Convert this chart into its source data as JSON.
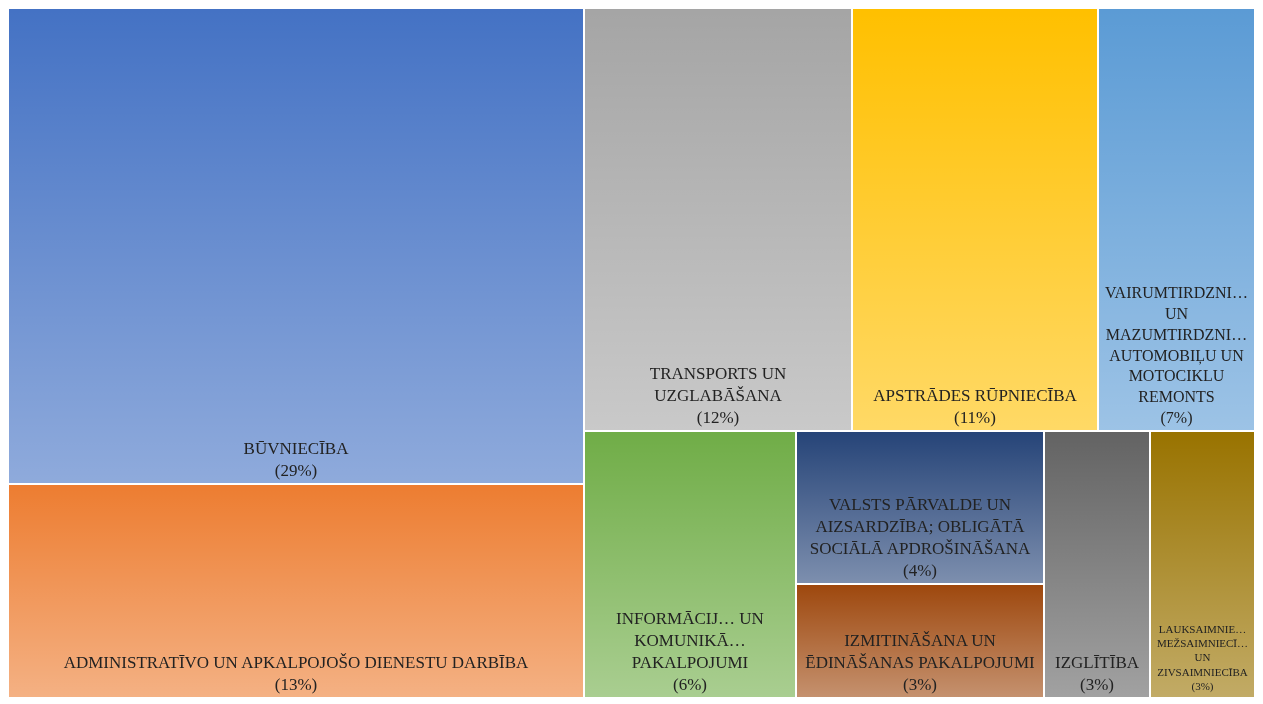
{
  "chart_data": {
    "type": "other",
    "categories": [
      "BŪVNIECĪBA",
      "ADMINISTRATĪVO UN APKALPOJOŠO DIENESTU DARBĪBA",
      "TRANSPORTS UN UZGLABĀŠANA",
      "APSTRĀDES RŪPNIECĪBA",
      "VAIRUMTIRDZNI… UN MAZUMTIRDZNI… AUTOMOBIĻU UN MOTOCIKLU REMONTS",
      "INFORMĀCIJ… UN KOMUNIKĀ… PAKALPOJUMI",
      "VALSTS PĀRVALDE UN AIZSARDZĪBA; OBLIGĀTĀ SOCIĀLĀ APDROŠINĀŠANA",
      "IZMITINĀŠANA UN ĒDINĀŠANAS PAKALPOJUMI",
      "IZGLĪTĪBA",
      "LAUKSAIMNIE… MEŽSAIMNIECĪ… UN ZIVSAIMNIECĪBA"
    ],
    "values": [
      29,
      13,
      12,
      11,
      7,
      6,
      4,
      3,
      3,
      3
    ],
    "value_labels": [
      "(29%)",
      "(13%)",
      "(12%)",
      "(11%)",
      "(7%)",
      "(6%)",
      "(4%)",
      "(3%)",
      "(3%)",
      "(3%)"
    ],
    "colors": [
      "#4472c4",
      "#ed7d31",
      "#a5a5a5",
      "#ffc000",
      "#5b9bd5",
      "#70ad47",
      "#264478",
      "#9e480e",
      "#636363",
      "#997300"
    ]
  }
}
